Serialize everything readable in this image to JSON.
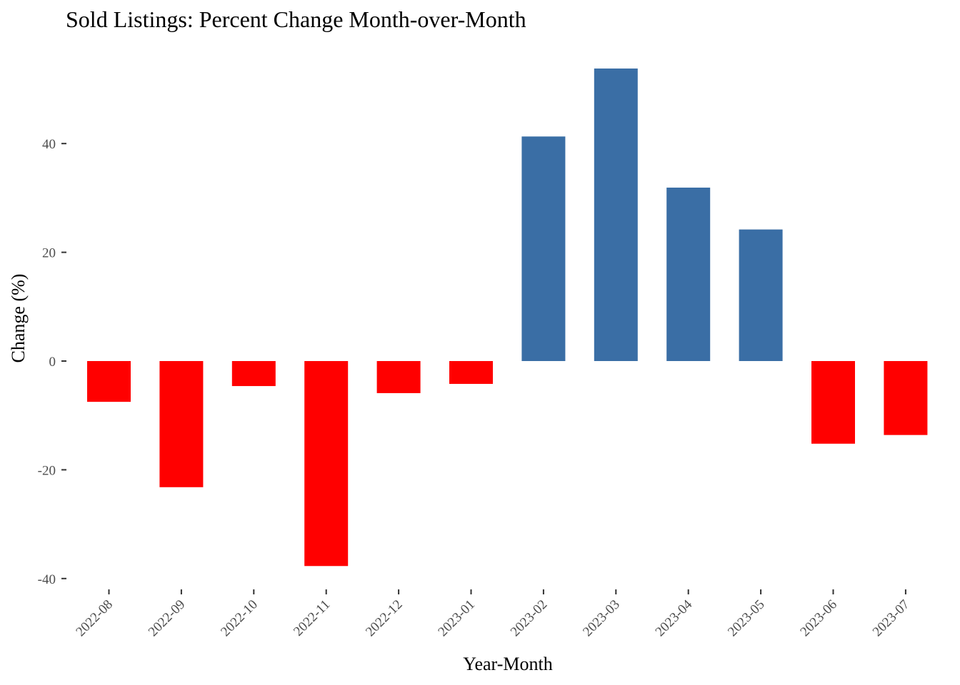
{
  "chart_data": {
    "type": "bar",
    "title": "Sold Listings: Percent Change Month-over-Month",
    "xlabel": "Year-Month",
    "ylabel": "Change (%)",
    "categories": [
      "2022-08",
      "2022-09",
      "2022-10",
      "2022-11",
      "2022-12",
      "2023-01",
      "2023-02",
      "2023-03",
      "2023-04",
      "2023-05",
      "2023-06",
      "2023-07"
    ],
    "values": [
      -7.5,
      -23.2,
      -4.6,
      -37.7,
      -5.9,
      -4.2,
      41.3,
      53.8,
      31.9,
      24.2,
      -15.2,
      -13.6
    ],
    "ylim": [
      -40,
      55
    ],
    "yticks": [
      -40,
      -20,
      0,
      20,
      40
    ],
    "ytick_labels": [
      "-40",
      "-20",
      "0",
      "20",
      "40"
    ],
    "grid": false,
    "legend": "none",
    "colors": {
      "positive": "#3A6EA5",
      "negative": "#FF0000"
    }
  }
}
